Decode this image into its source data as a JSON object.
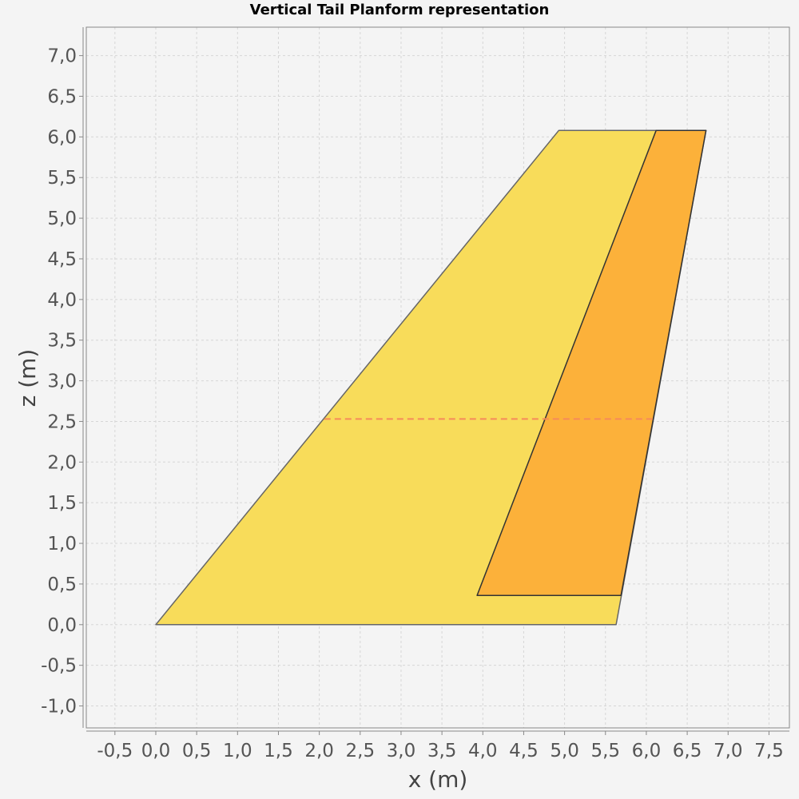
{
  "chart_data": {
    "type": "area",
    "title": "Vertical Tail Planform representation",
    "xlabel": "x (m)",
    "ylabel": "z (m)",
    "xlim": [
      -0.85,
      7.75
    ],
    "ylim": [
      -1.27,
      7.35
    ],
    "grid": true,
    "x_ticks": [
      -0.5,
      0.0,
      0.5,
      1.0,
      1.5,
      2.0,
      2.5,
      3.0,
      3.5,
      4.0,
      4.5,
      5.0,
      5.5,
      6.0,
      6.5,
      7.0,
      7.5
    ],
    "x_tick_labels": [
      "-0,5",
      "0,0",
      "0,5",
      "1,0",
      "1,5",
      "2,0",
      "2,5",
      "3,0",
      "3,5",
      "4,0",
      "4,5",
      "5,0",
      "5,5",
      "6,0",
      "6,5",
      "7,0",
      "7,5"
    ],
    "y_ticks": [
      -1.0,
      -0.5,
      0.0,
      0.5,
      1.0,
      1.5,
      2.0,
      2.5,
      3.0,
      3.5,
      4.0,
      4.5,
      5.0,
      5.5,
      6.0,
      6.5,
      7.0
    ],
    "y_tick_labels": [
      "-1,0",
      "-0,5",
      "0,0",
      "0,5",
      "1,0",
      "1,5",
      "2,0",
      "2,5",
      "3,0",
      "3,5",
      "4,0",
      "4,5",
      "5,0",
      "5,5",
      "6,0",
      "6,5",
      "7,0"
    ],
    "series": [
      {
        "kind": "polygon",
        "points": [
          [
            0.0,
            0.0
          ],
          [
            5.63,
            0.0
          ],
          [
            6.73,
            6.08
          ],
          [
            4.93,
            6.08
          ]
        ],
        "fill": "#f8dc5a",
        "stroke": "#666666"
      },
      {
        "kind": "polygon",
        "points": [
          [
            3.93,
            0.36
          ],
          [
            5.69,
            0.36
          ],
          [
            6.73,
            6.08
          ],
          [
            6.12,
            6.08
          ]
        ],
        "fill": "#fcb13a",
        "stroke": "#333333"
      },
      {
        "kind": "line",
        "dashed": true,
        "points": [
          [
            2.06,
            2.53
          ],
          [
            6.08,
            2.53
          ]
        ],
        "color": "#f58a5a"
      }
    ]
  }
}
